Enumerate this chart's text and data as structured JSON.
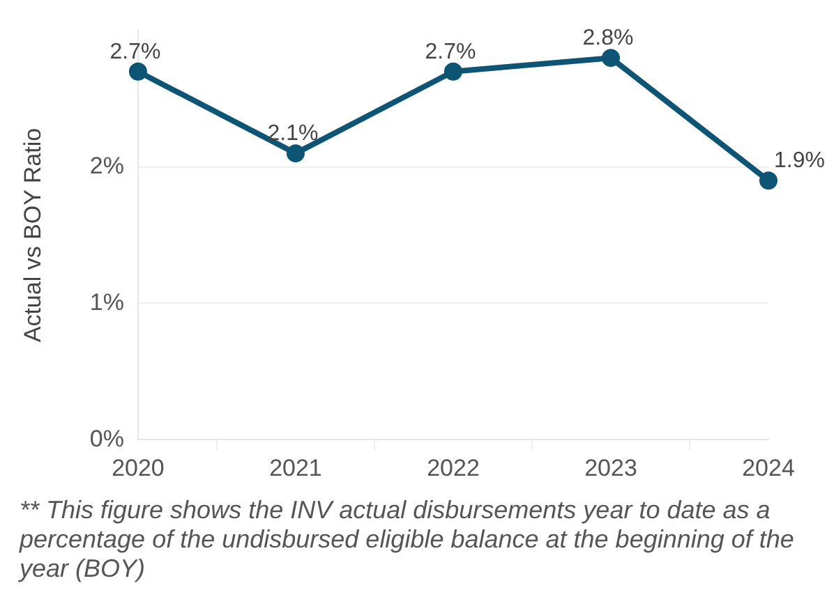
{
  "chart_data": {
    "type": "line",
    "ylabel": "Actual vs BOY Ratio",
    "categories": [
      "2020",
      "2021",
      "2022",
      "2023",
      "2024"
    ],
    "series": [
      {
        "color": "#0d5475",
        "values": [
          2.7,
          2.1,
          2.7,
          2.8,
          1.9
        ],
        "value_labels": [
          "2.7%",
          "2.1%",
          "2.7%",
          "2.8%",
          "1.9%"
        ]
      }
    ],
    "ylim": [
      0,
      3
    ],
    "yticks": [
      {
        "value": 0,
        "label": "0%"
      },
      {
        "value": 1,
        "label": "1%"
      },
      {
        "value": 2,
        "label": "2%"
      }
    ],
    "grid": "y",
    "marker": "circle",
    "legend": false,
    "annotations": [
      "** This figure shows the INV actual disbursements year to date as a percentage of the undisbursed eligible balance at the beginning of the year (BOY)"
    ]
  }
}
